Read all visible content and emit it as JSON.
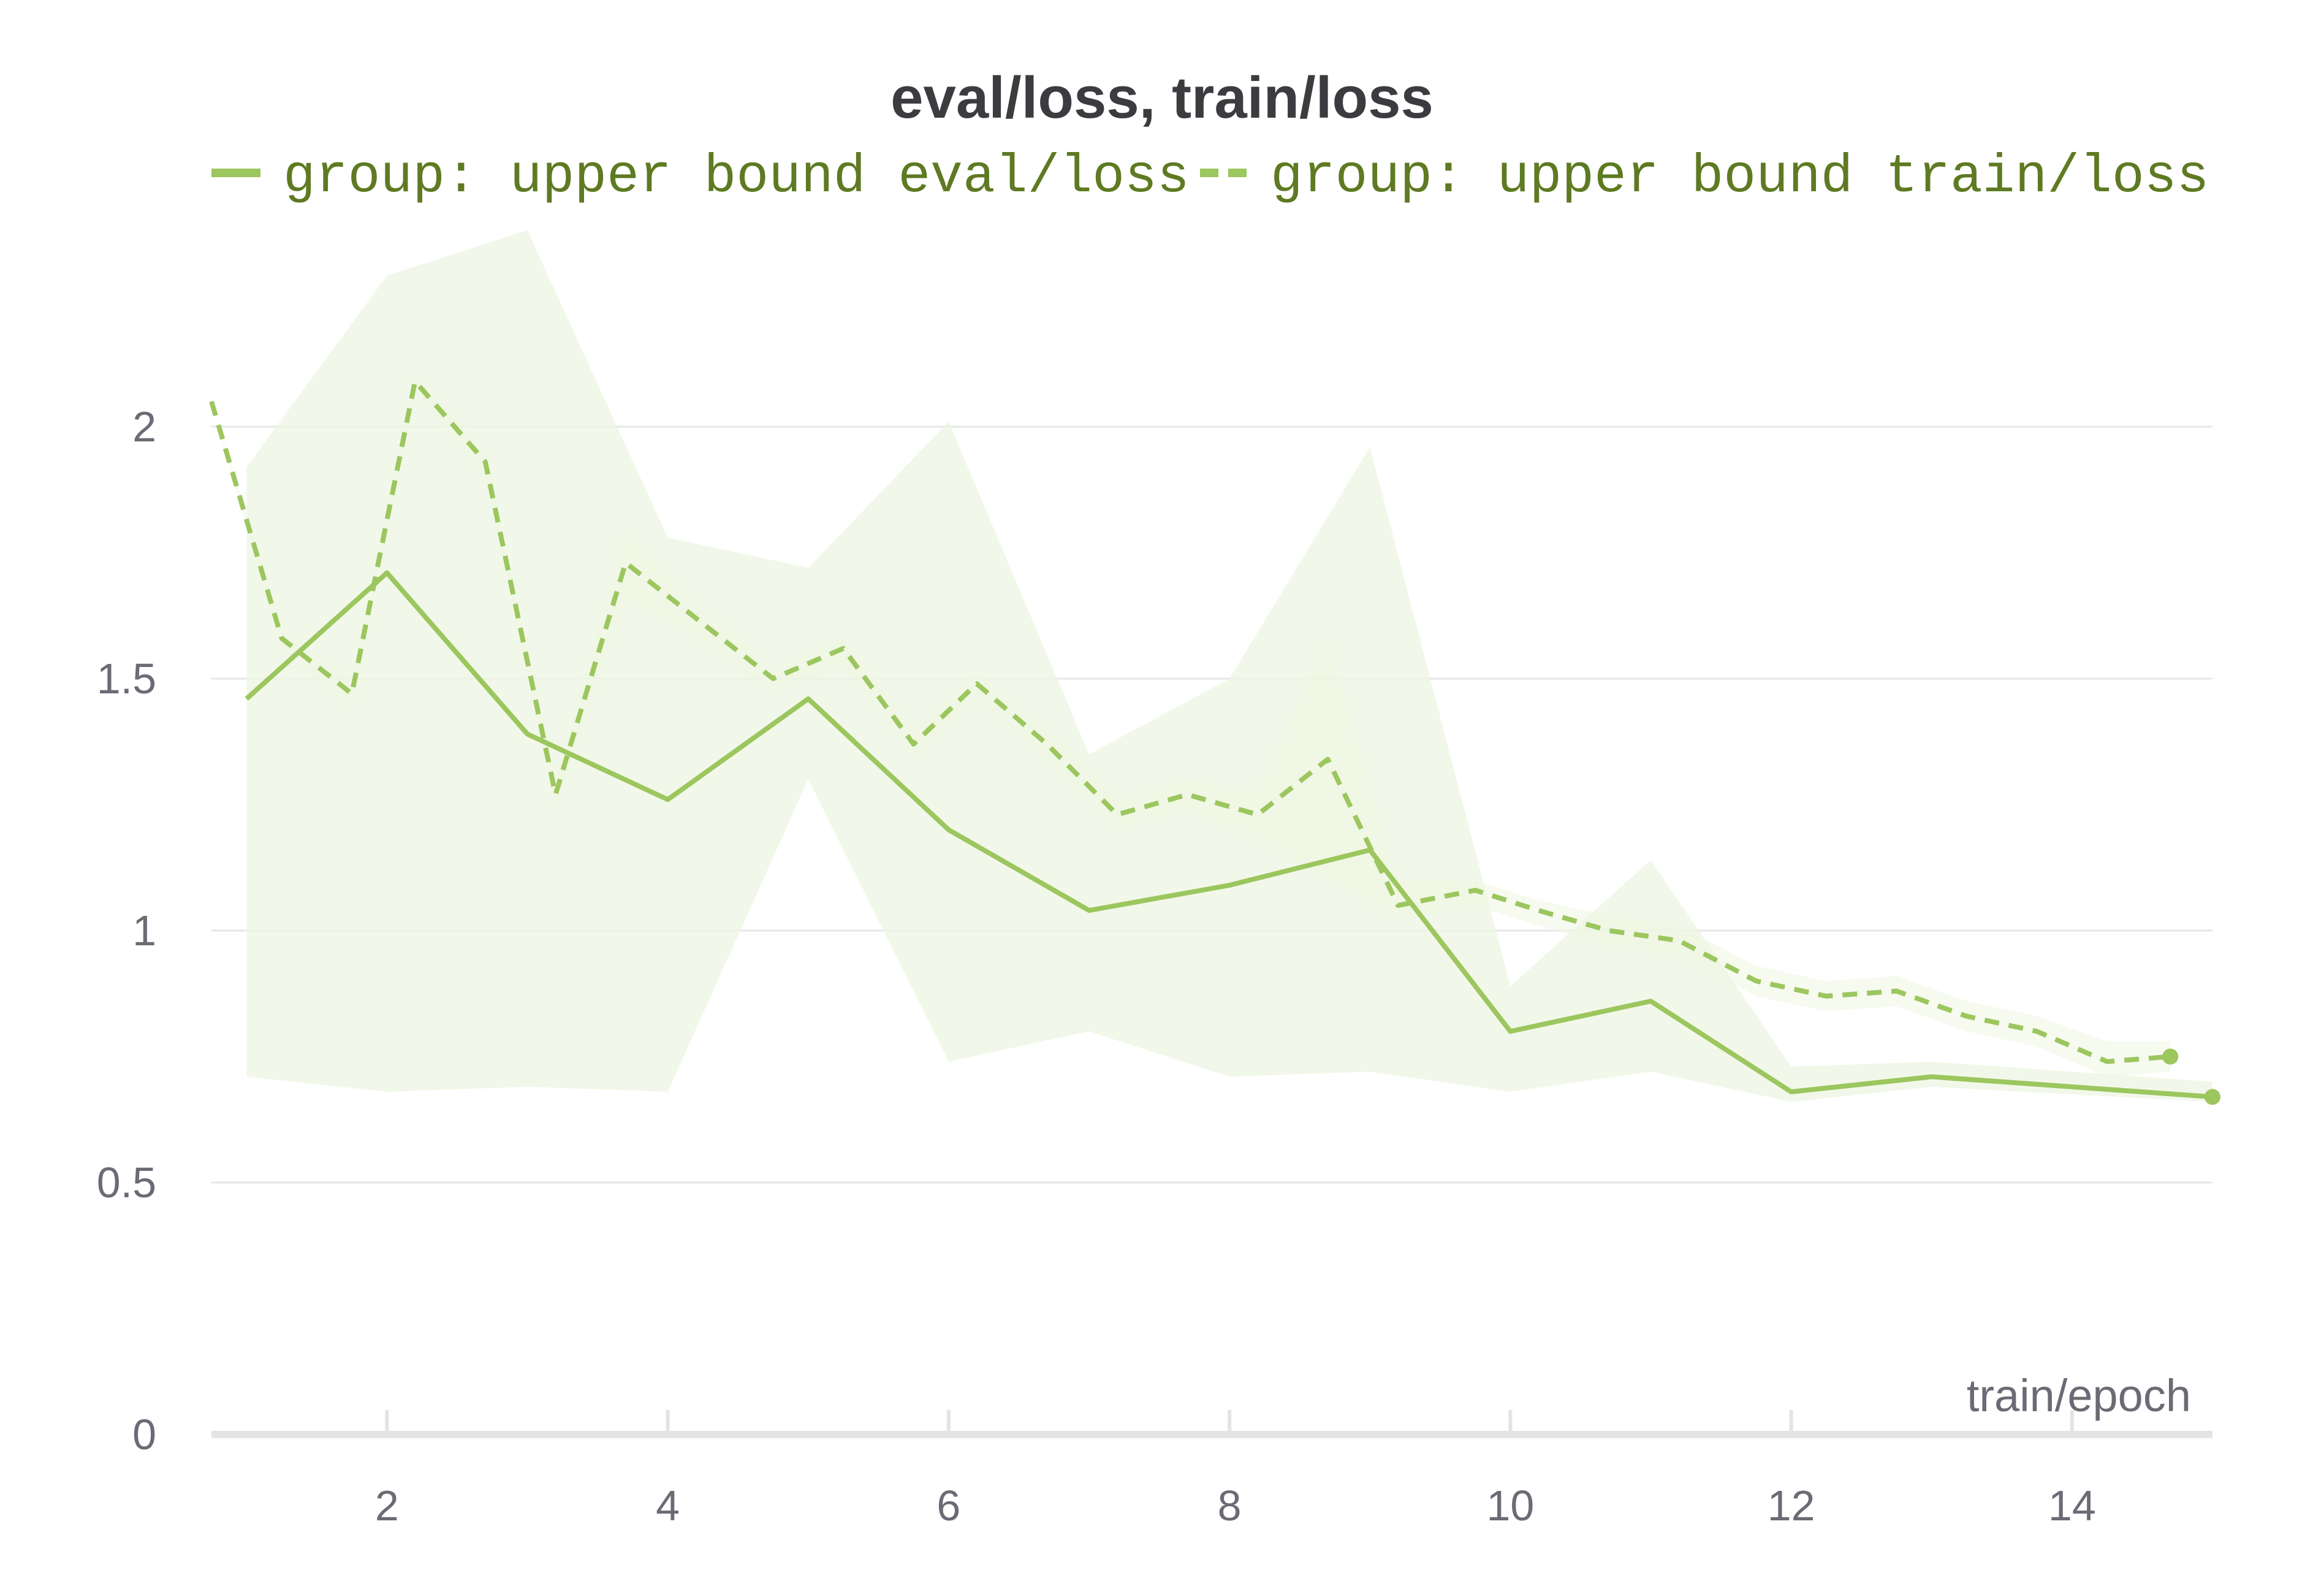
{
  "chart_data": {
    "type": "line",
    "title": "eval/loss, train/loss",
    "xlabel": "train/epoch",
    "ylabel": "",
    "xlim": [
      0.75,
      15
    ],
    "ylim": [
      0,
      2.2
    ],
    "x_ticks": [
      "2",
      "4",
      "6",
      "8",
      "10",
      "12",
      "14"
    ],
    "y_ticks": [
      "0",
      "0.5",
      "1",
      "1.5",
      "2"
    ],
    "grid": true,
    "legend_position": "top",
    "series_color": "#9cc65e",
    "band_color": "#eef5e1",
    "series": [
      {
        "name": "group: upper bound eval/loss",
        "style": "solid",
        "x": [
          1,
          2,
          3,
          4,
          5,
          6,
          7,
          8,
          9,
          10,
          11,
          12,
          13,
          15
        ],
        "values": [
          1.46,
          1.71,
          1.39,
          1.26,
          1.46,
          1.2,
          1.04,
          1.09,
          1.16,
          0.8,
          0.86,
          0.68,
          0.71,
          0.67
        ],
        "band_upper": [
          1.92,
          2.3,
          2.39,
          1.78,
          1.72,
          2.01,
          1.35,
          1.5,
          1.96,
          0.89,
          1.14,
          0.73,
          0.74,
          0.7
        ],
        "band_lower": [
          0.71,
          0.68,
          0.69,
          0.68,
          1.3,
          0.74,
          0.8,
          0.71,
          0.72,
          0.68,
          0.72,
          0.66,
          0.69,
          0.66
        ]
      },
      {
        "name": "group: upper bound train/loss",
        "style": "dashed",
        "x": [
          0.75,
          1.25,
          1.75,
          2.2,
          2.7,
          3.2,
          3.7,
          4.2,
          4.75,
          5.25,
          5.75,
          6.2,
          6.7,
          7.2,
          7.7,
          8.2,
          8.7,
          9.2,
          9.75,
          10.2,
          10.7,
          11.2,
          11.75,
          12.25,
          12.75,
          13.25,
          13.75,
          14.25,
          14.7
        ],
        "values": [
          2.05,
          1.58,
          1.47,
          2.09,
          1.93,
          1.27,
          1.73,
          1.62,
          1.5,
          1.56,
          1.37,
          1.49,
          1.37,
          1.23,
          1.27,
          1.23,
          1.34,
          1.05,
          1.08,
          1.04,
          1.0,
          0.98,
          0.9,
          0.87,
          0.88,
          0.83,
          0.8,
          0.74,
          0.75
        ],
        "band_upper": [
          2.05,
          1.6,
          1.5,
          2.1,
          1.95,
          1.3,
          1.8,
          1.66,
          1.52,
          1.58,
          1.4,
          1.51,
          1.4,
          1.26,
          1.3,
          1.28,
          1.58,
          1.1,
          1.1,
          1.06,
          1.03,
          1.01,
          0.93,
          0.9,
          0.91,
          0.86,
          0.83,
          0.78,
          0.78
        ],
        "band_lower": [
          2.05,
          1.56,
          1.44,
          2.07,
          1.9,
          1.24,
          1.66,
          1.58,
          1.47,
          1.53,
          1.34,
          1.46,
          1.34,
          1.2,
          1.24,
          1.18,
          1.1,
          1.02,
          1.05,
          1.01,
          0.97,
          0.95,
          0.87,
          0.84,
          0.85,
          0.8,
          0.77,
          0.71,
          0.72
        ]
      }
    ]
  }
}
